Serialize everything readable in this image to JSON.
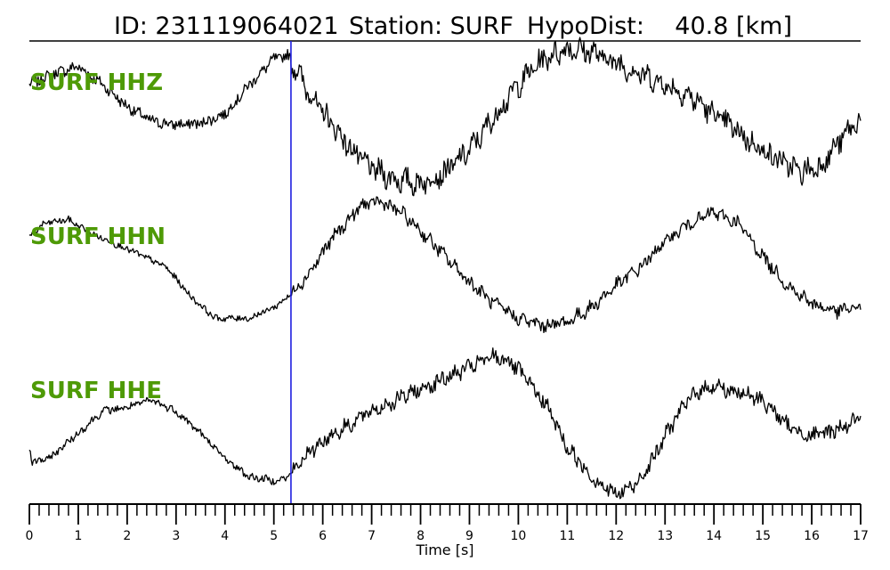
{
  "title": {
    "id_text": "ID: 231119064021",
    "station_text": "Station: SURF",
    "dist_text": "HypoDist:    40.8 [km]"
  },
  "colors": {
    "label": "#4e9a06",
    "pick_line": "#1f1fe0",
    "trace": "#000000"
  },
  "chart_data": {
    "type": "line",
    "xlabel": "Time [s]",
    "xlim": [
      0,
      17
    ],
    "major_ticks": [
      0,
      1,
      2,
      3,
      4,
      5,
      6,
      7,
      8,
      9,
      10,
      11,
      12,
      13,
      14,
      15,
      16,
      17
    ],
    "minor_tick_step": 0.2,
    "pick_time": 5.35,
    "series": [
      {
        "name": "SURF HHZ",
        "noise": 0.09,
        "x": [
          0,
          0.5,
          1.0,
          1.5,
          2.0,
          2.5,
          3.0,
          3.5,
          4.0,
          4.5,
          5.0,
          5.3,
          5.5,
          5.8,
          6.2,
          6.6,
          7.0,
          7.5,
          8.0,
          8.5,
          9.0,
          9.5,
          10.0,
          10.5,
          11.0,
          11.5,
          12.0,
          12.5,
          13.0,
          13.5,
          14.0,
          14.5,
          15.0,
          15.5,
          15.8,
          16.2,
          16.6,
          17.0
        ],
        "values": [
          0.45,
          0.6,
          0.7,
          0.45,
          0.15,
          -0.05,
          -0.1,
          -0.08,
          0.05,
          0.45,
          0.8,
          0.85,
          0.6,
          0.25,
          -0.1,
          -0.45,
          -0.7,
          -0.85,
          -0.9,
          -0.75,
          -0.45,
          0.0,
          0.45,
          0.8,
          0.95,
          0.9,
          0.75,
          0.6,
          0.45,
          0.3,
          0.05,
          -0.2,
          -0.45,
          -0.65,
          -0.75,
          -0.65,
          -0.3,
          0.0
        ]
      },
      {
        "name": "SURF HHN",
        "noise": 0.05,
        "x": [
          0,
          0.3,
          0.8,
          1.3,
          2.0,
          2.8,
          3.3,
          3.8,
          4.5,
          5.0,
          5.3,
          5.7,
          6.2,
          6.8,
          7.2,
          7.6,
          8.0,
          8.5,
          9.0,
          9.5,
          10.0,
          10.5,
          11.0,
          11.5,
          12.0,
          12.5,
          13.0,
          13.5,
          14.0,
          14.5,
          15.0,
          15.5,
          16.0,
          16.5,
          17.0
        ],
        "values": [
          0.4,
          0.6,
          0.65,
          0.45,
          0.25,
          0.0,
          -0.4,
          -0.7,
          -0.7,
          -0.55,
          -0.4,
          -0.1,
          0.4,
          0.85,
          0.9,
          0.75,
          0.5,
          0.15,
          -0.2,
          -0.5,
          -0.7,
          -0.8,
          -0.75,
          -0.55,
          -0.25,
          0.0,
          0.35,
          0.6,
          0.75,
          0.6,
          0.15,
          -0.25,
          -0.5,
          -0.6,
          -0.55
        ]
      },
      {
        "name": "SURF HHE",
        "noise": 0.06,
        "x": [
          0,
          0.05,
          0.4,
          1.0,
          1.5,
          2.0,
          2.5,
          3.0,
          3.5,
          4.0,
          4.5,
          5.0,
          5.3,
          5.6,
          6.0,
          6.5,
          7.0,
          7.5,
          8.0,
          8.5,
          9.0,
          9.5,
          9.8,
          10.2,
          10.6,
          11.0,
          11.5,
          12.0,
          12.4,
          12.8,
          13.2,
          13.6,
          14.0,
          14.5,
          15.0,
          15.5,
          16.0,
          16.5,
          17.0
        ],
        "values": [
          -0.3,
          -0.5,
          -0.45,
          -0.1,
          0.2,
          0.25,
          0.35,
          0.2,
          -0.1,
          -0.45,
          -0.7,
          -0.75,
          -0.7,
          -0.45,
          -0.2,
          0.0,
          0.2,
          0.35,
          0.5,
          0.65,
          0.8,
          0.95,
          0.9,
          0.6,
          0.25,
          -0.3,
          -0.7,
          -0.95,
          -0.8,
          -0.4,
          0.1,
          0.45,
          0.55,
          0.45,
          0.35,
          0.0,
          -0.15,
          -0.05,
          0.1
        ]
      }
    ]
  }
}
